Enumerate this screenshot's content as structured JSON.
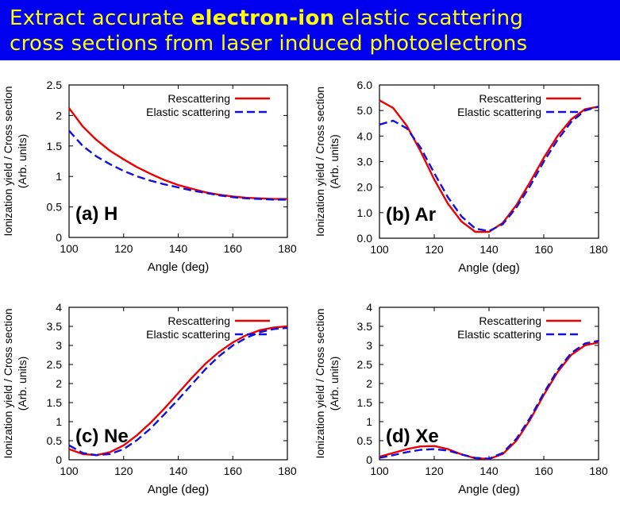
{
  "title": {
    "line1_pre": "Extract accurate ",
    "line1_bold": "electron-ion",
    "line1_post": " elastic scattering",
    "line2": "cross sections from laser induced  photoelectrons"
  },
  "colors": {
    "banner": "#0000ee",
    "title_text": "#ffff00",
    "rescattering": "#ee0000",
    "elastic": "#1111dd"
  },
  "chart_data": [
    {
      "type": "line",
      "panel_label": "(a) H",
      "label_position": "bottom-left",
      "xlabel": "Angle (deg)",
      "ylabel": "Ionization yield / Cross section\n(Arb. units)",
      "xlim": [
        100,
        180
      ],
      "ylim": [
        0,
        2.5
      ],
      "xticks": [
        "100",
        "120",
        "140",
        "160",
        "180"
      ],
      "yticks": [
        "0",
        "0.5",
        "1",
        "1.5",
        "2",
        "2.5"
      ],
      "legend": "top-right",
      "x": [
        100,
        105,
        110,
        115,
        120,
        125,
        130,
        135,
        140,
        145,
        150,
        155,
        160,
        165,
        170,
        175,
        180
      ],
      "series": [
        {
          "name": "Rescattering",
          "style": "solid",
          "values": [
            2.12,
            1.82,
            1.6,
            1.42,
            1.28,
            1.15,
            1.04,
            0.94,
            0.86,
            0.8,
            0.74,
            0.7,
            0.67,
            0.65,
            0.64,
            0.63,
            0.63
          ]
        },
        {
          "name": "Elastic scattering",
          "style": "dashed",
          "values": [
            1.75,
            1.5,
            1.33,
            1.2,
            1.09,
            1.0,
            0.93,
            0.87,
            0.82,
            0.77,
            0.73,
            0.69,
            0.66,
            0.64,
            0.63,
            0.62,
            0.62
          ]
        }
      ]
    },
    {
      "type": "line",
      "panel_label": "(b) Ar",
      "label_position": "bottom-left",
      "xlabel": "Angle (deg)",
      "ylabel": "Ionization yield / Cross section\n(Arb. units)",
      "xlim": [
        100,
        180
      ],
      "ylim": [
        0,
        6
      ],
      "xticks": [
        "100",
        "120",
        "140",
        "160",
        "180"
      ],
      "yticks": [
        "0.0",
        "1.0",
        "2.0",
        "3.0",
        "4.0",
        "5.0",
        "6.0"
      ],
      "legend": "top-right",
      "x": [
        100,
        105,
        110,
        115,
        120,
        125,
        130,
        135,
        140,
        145,
        150,
        155,
        160,
        165,
        170,
        175,
        180
      ],
      "series": [
        {
          "name": "Rescattering",
          "style": "solid",
          "values": [
            5.4,
            5.1,
            4.4,
            3.4,
            2.3,
            1.35,
            0.65,
            0.25,
            0.25,
            0.6,
            1.3,
            2.2,
            3.15,
            4.0,
            4.65,
            5.05,
            5.15
          ]
        },
        {
          "name": "Elastic scattering",
          "style": "dashed",
          "values": [
            4.45,
            4.6,
            4.3,
            3.55,
            2.55,
            1.6,
            0.85,
            0.38,
            0.28,
            0.55,
            1.2,
            2.05,
            3.0,
            3.85,
            4.55,
            5.0,
            5.15
          ]
        }
      ]
    },
    {
      "type": "line",
      "panel_label": "(c) Ne",
      "label_position": "bottom-left",
      "xlabel": "Angle (deg)",
      "ylabel": "Ionization yield / Cross section\n(Arb. units)",
      "xlim": [
        100,
        180
      ],
      "ylim": [
        0,
        4
      ],
      "xticks": [
        "100",
        "120",
        "140",
        "160",
        "180"
      ],
      "yticks": [
        "0",
        "0.5",
        "1",
        "1.5",
        "2",
        "2.5",
        "3",
        "3.5",
        "4"
      ],
      "legend": "top-right",
      "x": [
        100,
        105,
        110,
        115,
        120,
        125,
        130,
        135,
        140,
        145,
        150,
        155,
        160,
        165,
        170,
        175,
        180
      ],
      "series": [
        {
          "name": "Rescattering",
          "style": "solid",
          "values": [
            0.28,
            0.15,
            0.12,
            0.2,
            0.38,
            0.65,
            0.98,
            1.35,
            1.75,
            2.15,
            2.52,
            2.83,
            3.08,
            3.27,
            3.4,
            3.47,
            3.5
          ]
        },
        {
          "name": "Elastic scattering",
          "style": "dashed",
          "values": [
            0.38,
            0.18,
            0.12,
            0.15,
            0.28,
            0.52,
            0.83,
            1.2,
            1.58,
            1.98,
            2.38,
            2.72,
            3.0,
            3.2,
            3.35,
            3.43,
            3.46
          ]
        }
      ]
    },
    {
      "type": "line",
      "panel_label": "(d) Xe",
      "label_position": "bottom-left",
      "xlabel": "Angle (deg)",
      "ylabel": "Ionization yield / Cross section\n(Arb. units)",
      "xlim": [
        100,
        180
      ],
      "ylim": [
        0,
        4
      ],
      "xticks": [
        "100",
        "120",
        "140",
        "160",
        "180"
      ],
      "yticks": [
        "0",
        "0.5",
        "1",
        "1.5",
        "2",
        "2.5",
        "3",
        "3.5",
        "4"
      ],
      "legend": "top-right",
      "x": [
        100,
        105,
        110,
        115,
        120,
        125,
        130,
        135,
        140,
        145,
        150,
        155,
        160,
        165,
        170,
        175,
        180
      ],
      "series": [
        {
          "name": "Rescattering",
          "style": "solid",
          "values": [
            0.08,
            0.18,
            0.28,
            0.35,
            0.36,
            0.28,
            0.14,
            0.04,
            0.02,
            0.15,
            0.5,
            1.05,
            1.7,
            2.3,
            2.75,
            3.0,
            3.08
          ]
        },
        {
          "name": "Elastic scattering",
          "style": "dashed",
          "values": [
            0.05,
            0.12,
            0.2,
            0.26,
            0.28,
            0.24,
            0.14,
            0.05,
            0.03,
            0.18,
            0.55,
            1.1,
            1.75,
            2.35,
            2.8,
            3.05,
            3.12
          ]
        }
      ]
    }
  ]
}
